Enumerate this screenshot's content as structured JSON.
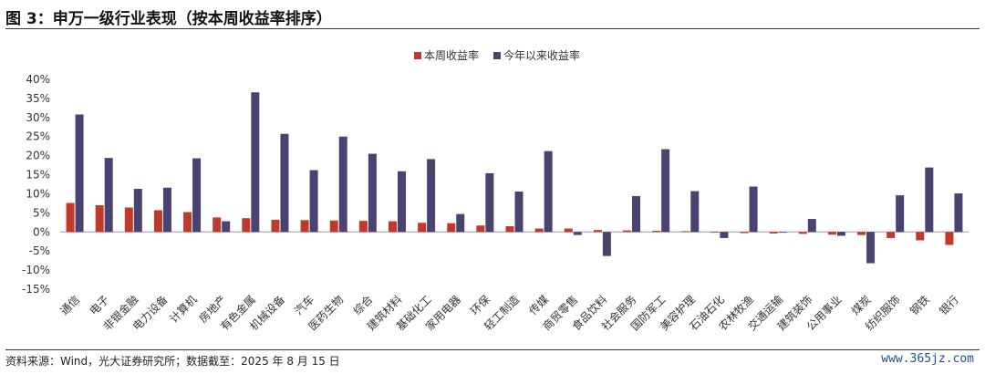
{
  "header": {
    "title": "图 3：申万一级行业表现（按本周收益率排序）"
  },
  "footer": {
    "source": "资料来源：Wind，光大证券研究所；数据截至：2025 年 8 月 15 日",
    "watermark": "www.365jz.com"
  },
  "chart_data": {
    "type": "bar",
    "categories": [
      "通信",
      "电子",
      "非银金融",
      "电力设备",
      "计算机",
      "房地产",
      "有色金属",
      "机械设备",
      "汽车",
      "医药生物",
      "综合",
      "建筑材料",
      "基础化工",
      "家用电器",
      "环保",
      "轻工制造",
      "传媒",
      "商贸零售",
      "食品饮料",
      "社会服务",
      "国防军工",
      "美容护理",
      "石油石化",
      "农林牧渔",
      "交通运输",
      "建筑装饰",
      "公用事业",
      "煤炭",
      "纺织服饰",
      "钢铁",
      "银行"
    ],
    "series": [
      {
        "name": "本周收益率",
        "color": "#c0392b",
        "values": [
          7.6,
          7.0,
          6.4,
          5.7,
          5.2,
          3.8,
          3.6,
          3.2,
          3.1,
          3.0,
          2.9,
          2.8,
          2.4,
          2.3,
          1.7,
          1.5,
          0.9,
          0.9,
          0.5,
          0.4,
          0.3,
          0.2,
          -0.2,
          -0.3,
          -0.4,
          -0.5,
          -0.7,
          -0.8,
          -1.6,
          -2.2,
          -3.4
        ]
      },
      {
        "name": "今年以来收益率",
        "color": "#4a4370",
        "values": [
          30.8,
          19.4,
          11.3,
          11.6,
          19.3,
          2.8,
          36.6,
          25.7,
          16.2,
          25.0,
          20.5,
          15.9,
          19.1,
          4.7,
          15.4,
          10.6,
          21.2,
          -0.8,
          -6.3,
          9.4,
          21.7,
          10.7,
          -1.6,
          11.9,
          -0.2,
          3.4,
          -1.0,
          -8.2,
          9.6,
          16.9,
          10.1
        ]
      }
    ],
    "yticks": [
      "40%",
      "35%",
      "30%",
      "25%",
      "20%",
      "15%",
      "10%",
      "5%",
      "0%",
      "-5%",
      "-10%",
      "-15%"
    ],
    "ylim": [
      -15,
      40
    ],
    "legend_position": "top-center",
    "grid": false
  }
}
